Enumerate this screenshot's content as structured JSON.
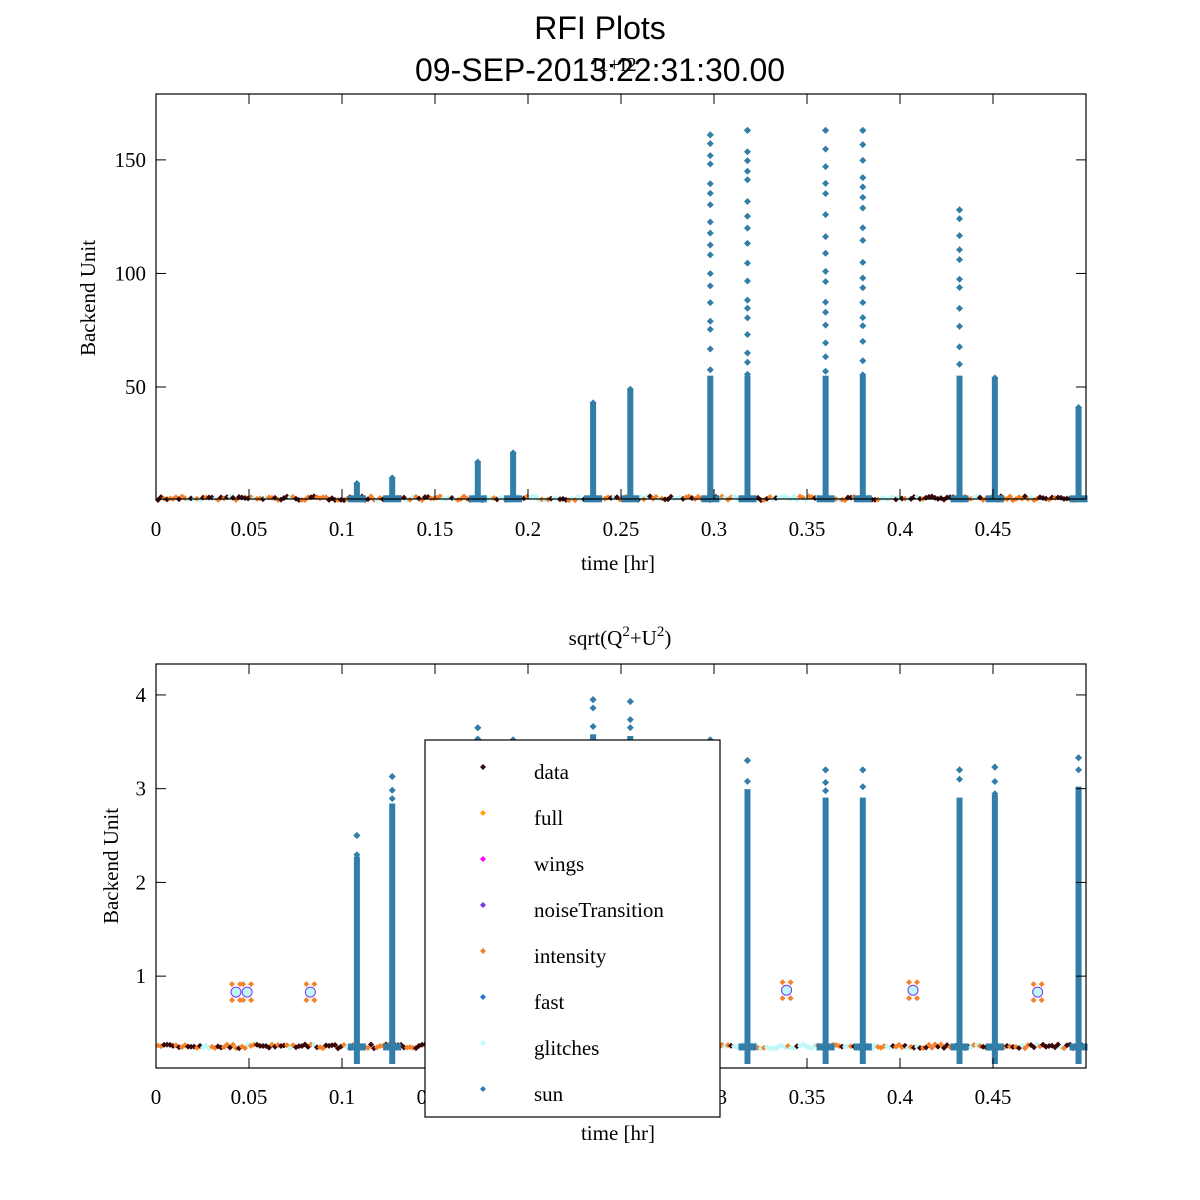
{
  "title": "RFI Plots",
  "subtitle_date": "09-SEP-2013:22:31:30.00",
  "subtitle_overlap": "I1+I2",
  "colors": {
    "data": "#3a0808",
    "full": "#ffa512",
    "wings": "#ff00ff",
    "noiseTransition": "#7a35e8",
    "intensity": "#f5822a",
    "fast": "#1f78d1",
    "glitches": "#bff8f8",
    "sun": "#337ea8"
  },
  "chart_data": [
    {
      "type": "scatter",
      "title": "",
      "xlabel": "time [hr]",
      "ylabel": "Backend Unit",
      "xlim": [
        0,
        0.5
      ],
      "ylim": [
        0.7,
        179
      ],
      "xticks": [
        0,
        0.05,
        0.1,
        0.15,
        0.2,
        0.25,
        0.3,
        0.35,
        0.4,
        0.45
      ],
      "xtick_labels": [
        "0",
        "0.05",
        "0.1",
        "0.15",
        "0.2",
        "0.25",
        "0.3",
        "0.35",
        "0.4",
        "0.45"
      ],
      "yticks": [
        50,
        100,
        150
      ],
      "ytick_labels": [
        "50",
        "100",
        "150"
      ],
      "baseline": 1.0,
      "sun_spikes": [
        {
          "x": 0.108,
          "peak": 7.5
        },
        {
          "x": 0.127,
          "peak": 10
        },
        {
          "x": 0.173,
          "peak": 17
        },
        {
          "x": 0.192,
          "peak": 21
        },
        {
          "x": 0.235,
          "peak": 43
        },
        {
          "x": 0.255,
          "peak": 49
        },
        {
          "x": 0.298,
          "peak": 161
        },
        {
          "x": 0.318,
          "peak": 163
        },
        {
          "x": 0.36,
          "peak": 163
        },
        {
          "x": 0.38,
          "peak": 163
        },
        {
          "x": 0.432,
          "peak": 128
        },
        {
          "x": 0.451,
          "peak": 54
        },
        {
          "x": 0.496,
          "peak": 41
        }
      ],
      "outliers": []
    },
    {
      "type": "scatter",
      "title": "sqrt(Q",
      "title_sup1": "2",
      "title_mid": "+U",
      "title_sup2": "2",
      "title_end": ")",
      "xlabel": "time [hr]",
      "ylabel": "Backend Unit",
      "xlim": [
        0,
        0.5
      ],
      "ylim": [
        0.02,
        4.33
      ],
      "xticks": [
        0,
        0.05,
        0.1,
        0.15,
        0.2,
        0.25,
        0.3,
        0.35,
        0.4,
        0.45
      ],
      "xtick_labels": [
        "0",
        "0.05",
        "0.1",
        "0.15",
        "0.2",
        "0.25",
        "0.3",
        "0.35",
        "0.4",
        "0.45"
      ],
      "yticks": [
        1,
        2,
        3,
        4
      ],
      "ytick_labels": [
        "1",
        "2",
        "3",
        "4"
      ],
      "baseline": 0.25,
      "sun_spikes": [
        {
          "x": 0.108,
          "peak": 2.5
        },
        {
          "x": 0.127,
          "peak": 3.13
        },
        {
          "x": 0.173,
          "peak": 3.65
        },
        {
          "x": 0.192,
          "peak": 3.52
        },
        {
          "x": 0.235,
          "peak": 3.95
        },
        {
          "x": 0.255,
          "peak": 3.93
        },
        {
          "x": 0.298,
          "peak": 3.52
        },
        {
          "x": 0.318,
          "peak": 3.3
        },
        {
          "x": 0.36,
          "peak": 3.2
        },
        {
          "x": 0.38,
          "peak": 3.2
        },
        {
          "x": 0.432,
          "peak": 3.2
        },
        {
          "x": 0.451,
          "peak": 3.23
        },
        {
          "x": 0.496,
          "peak": 3.33
        }
      ],
      "outliers": [
        {
          "x": 0.043,
          "y": 0.83
        },
        {
          "x": 0.049,
          "y": 0.83
        },
        {
          "x": 0.083,
          "y": 0.83
        },
        {
          "x": 0.339,
          "y": 0.85
        },
        {
          "x": 0.407,
          "y": 0.85
        },
        {
          "x": 0.474,
          "y": 0.83
        }
      ]
    }
  ],
  "legend": {
    "placement": "center-left",
    "entries": [
      {
        "key": "data",
        "label": "data"
      },
      {
        "key": "full",
        "label": "full"
      },
      {
        "key": "wings",
        "label": "wings"
      },
      {
        "key": "noiseTransition",
        "label": "noiseTransition"
      },
      {
        "key": "intensity",
        "label": "intensity"
      },
      {
        "key": "fast",
        "label": "fast"
      },
      {
        "key": "glitches",
        "label": "glitches"
      },
      {
        "key": "sun",
        "label": "sun"
      }
    ]
  }
}
